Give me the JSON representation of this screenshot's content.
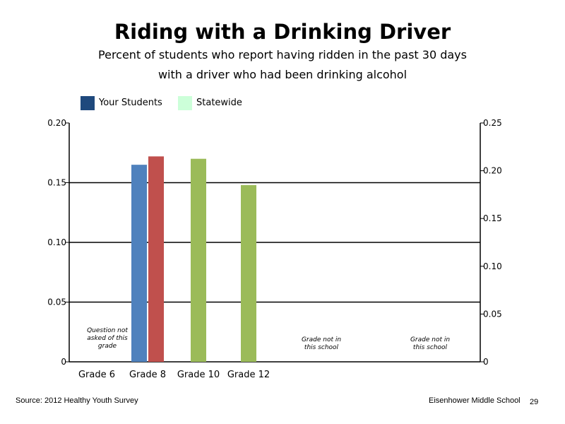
{
  "chart_data": {
    "type": "bar",
    "title": "Riding with a Drinking Driver",
    "subtitle_lines": [
      "Percent of students who report having ridden in the past 30 days",
      "with a driver who had been drinking alcohol"
    ],
    "categories": [
      "Grade 6",
      "Grade 8",
      "Grade 10",
      "Grade 12"
    ],
    "series": [
      {
        "name": "Your Students",
        "values": [
          null,
          0.165,
          null,
          null
        ]
      },
      {
        "name": "Statewide",
        "values": [
          null,
          0.172,
          0.17,
          0.148
        ]
      }
    ],
    "display_colors": {
      "grade8_your_students": "#4f81bd",
      "grade8_statewide": "#c0504d",
      "other_statewide": "#9bbb59"
    },
    "legend_colors": {
      "Your Students": "#1f497d",
      "Statewide": "#ccffd9"
    },
    "ylim_left": [
      0,
      0.2
    ],
    "yticks_left": [
      "0.20",
      "0.15",
      "0.10",
      "0.05",
      "0"
    ],
    "ylim_right": [
      0,
      0.25
    ],
    "yticks_right": [
      "0.25",
      "0.20",
      "0.15",
      "0.10",
      "0.05",
      "0"
    ],
    "grid": true,
    "legend_position": "top-left",
    "annotations": [
      {
        "lines": [
          "Question not",
          "asked of this",
          "grade"
        ]
      },
      {
        "lines": [
          "Grade not in",
          "this school"
        ]
      },
      {
        "lines": [
          "Grade not in",
          "this school"
        ]
      }
    ]
  },
  "footer": {
    "source": "Source: 2012 Healthy Youth Survey",
    "school": "Eisenhower Middle  School",
    "page": "29"
  }
}
